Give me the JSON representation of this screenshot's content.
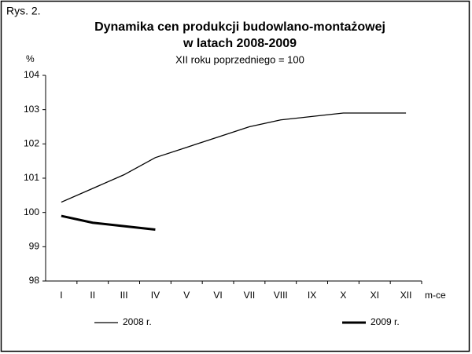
{
  "chart_data": {
    "type": "line",
    "figure_label": "Rys. 2.",
    "title": [
      "Dynamika cen produkcji budowlano-montażowej",
      "w latach 2008-2009"
    ],
    "subtitle": "XII roku poprzedniego = 100",
    "ylabel": "%",
    "xlabel": "m-ce",
    "categories": [
      "I",
      "II",
      "III",
      "IV",
      "V",
      "VI",
      "VII",
      "VIII",
      "IX",
      "X",
      "XI",
      "XII"
    ],
    "series": [
      {
        "name": "2008 r.",
        "color": "#000000",
        "linewidth": 1.3,
        "values": [
          100.3,
          100.7,
          101.1,
          101.6,
          101.9,
          102.2,
          102.5,
          102.7,
          102.8,
          102.9,
          102.9,
          102.9
        ]
      },
      {
        "name": "2009 r.",
        "color": "#000000",
        "linewidth": 3,
        "values": [
          99.9,
          99.7,
          99.6,
          99.5,
          null,
          null,
          null,
          null,
          null,
          null,
          null,
          null
        ]
      }
    ],
    "ylim": [
      98,
      104
    ],
    "yticks": [
      98,
      99,
      100,
      101,
      102,
      103,
      104
    ],
    "grid": false,
    "legend": "bottom"
  }
}
